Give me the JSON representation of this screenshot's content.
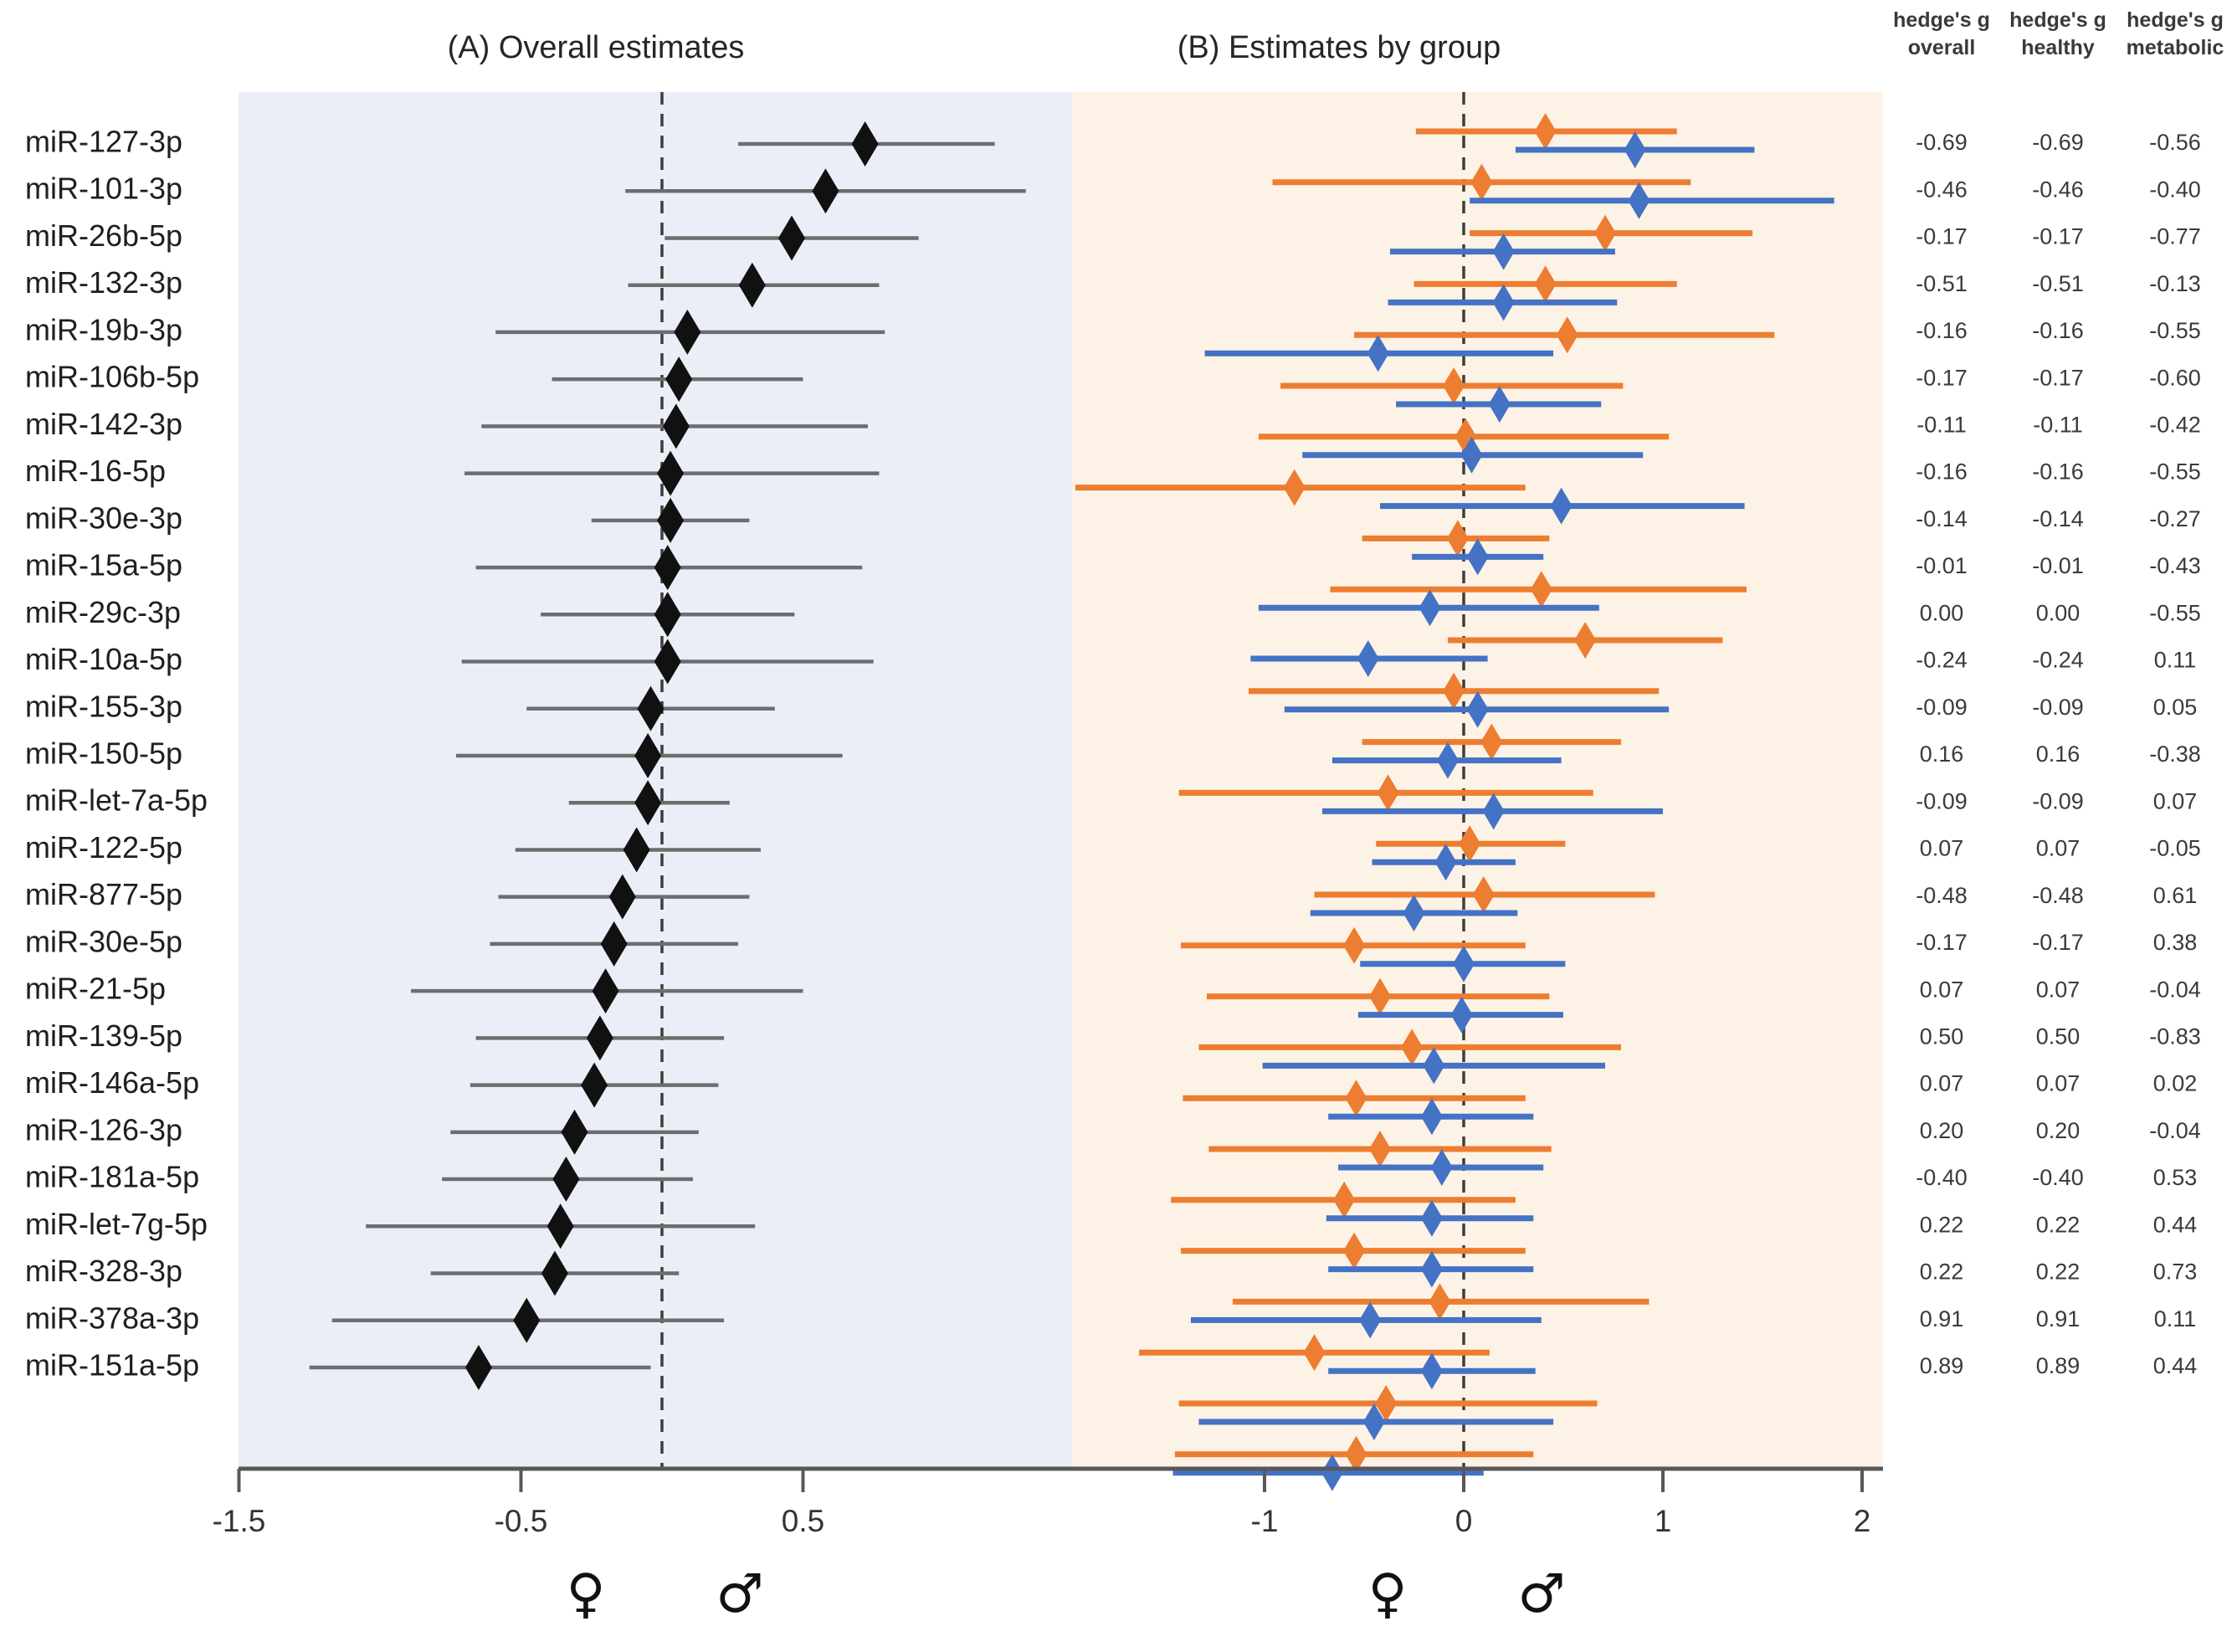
{
  "titles": {
    "panel_a": "(A) Overall estimates",
    "panel_b": "(B) Estimates by group"
  },
  "table_headers": {
    "overall": {
      "line1": "hedge's g",
      "line2": "overall"
    },
    "healthy": {
      "line1": "hedge's g",
      "line2": "healthy"
    },
    "metabolic": {
      "line1": "hedge's g",
      "line2": "metabolic"
    }
  },
  "gender_symbols": {
    "female": "♀",
    "male": "♂"
  },
  "colors": {
    "panel_a_bg": "#eaeef7",
    "panel_b_bg": "#fdf2e6",
    "ci_gray": "#6d6d6d",
    "diamond_black": "#111111",
    "orange": "#ed7d31",
    "blue": "#4472c4",
    "axis": "#58585a",
    "dashed": "#3d3d3d",
    "label_text": "#1f1f1f",
    "tick_text": "#333333",
    "value_text": "#3a3a3a"
  },
  "chart_data": {
    "type": "forest",
    "panels": [
      {
        "id": "A",
        "title": "(A) Overall estimates",
        "xlim": [
          -1.5,
          1.5
        ],
        "ticks": [
          {
            "v": -1.5,
            "label": "-1.5"
          },
          {
            "v": -0.5,
            "label": "-0.5"
          },
          {
            "v": 0.5,
            "label": "0.5"
          }
        ],
        "zero_line": "dashed"
      },
      {
        "id": "B",
        "title": "(B) Estimates by group",
        "xlim": [
          -1.95,
          2.1
        ],
        "ticks": [
          {
            "v": -1,
            "label": "-1"
          },
          {
            "v": 0,
            "label": "0"
          },
          {
            "v": 1,
            "label": "1"
          },
          {
            "v": 2,
            "label": "2"
          }
        ],
        "zero_line": "dashed"
      }
    ],
    "legend_note": "female symbol left of zero, male symbol right of zero under both panels",
    "rows": [
      {
        "label": "miR-127-3p",
        "overall": [
          0.72,
          0.27,
          1.18
        ],
        "orange": [
          0.41,
          -0.24,
          1.07
        ],
        "blue": [
          0.86,
          0.26,
          1.46
        ],
        "g": [
          "-0.69",
          "-0.69",
          "-0.56"
        ]
      },
      {
        "label": "miR-101-3p",
        "overall": [
          0.58,
          -0.13,
          1.29
        ],
        "orange": [
          0.09,
          -0.96,
          1.14
        ],
        "blue": [
          0.88,
          0.03,
          1.86
        ],
        "g": [
          "-0.46",
          "-0.46",
          "-0.40"
        ]
      },
      {
        "label": "miR-26b-5p",
        "overall": [
          0.46,
          0.01,
          0.91
        ],
        "orange": [
          0.71,
          0.03,
          1.45
        ],
        "blue": [
          0.2,
          -0.37,
          0.76
        ],
        "g": [
          "-0.17",
          "-0.17",
          "-0.77"
        ]
      },
      {
        "label": "miR-132-3p",
        "overall": [
          0.32,
          -0.12,
          0.77
        ],
        "orange": [
          0.41,
          -0.25,
          1.07
        ],
        "blue": [
          0.2,
          -0.38,
          0.77
        ],
        "g": [
          "-0.51",
          "-0.51",
          "-0.13"
        ]
      },
      {
        "label": "miR-19b-3p",
        "overall": [
          0.09,
          -0.59,
          0.79
        ],
        "orange": [
          0.52,
          -0.55,
          1.56
        ],
        "blue": [
          -0.43,
          -1.3,
          0.45
        ],
        "g": [
          "-0.16",
          "-0.16",
          "-0.55"
        ]
      },
      {
        "label": "miR-106b-5p",
        "overall": [
          0.06,
          -0.39,
          0.5
        ],
        "orange": [
          -0.05,
          -0.92,
          0.8
        ],
        "blue": [
          0.18,
          -0.34,
          0.69
        ],
        "g": [
          "-0.17",
          "-0.17",
          "-0.60"
        ]
      },
      {
        "label": "miR-142-3p",
        "overall": [
          0.05,
          -0.64,
          0.73
        ],
        "orange": [
          0.01,
          -1.03,
          1.03
        ],
        "blue": [
          0.04,
          -0.81,
          0.9
        ],
        "g": [
          "-0.11",
          "-0.11",
          "-0.42"
        ]
      },
      {
        "label": "miR-16-5p",
        "overall": [
          0.03,
          -0.7,
          0.77
        ],
        "orange": [
          -0.85,
          -1.95,
          0.31
        ],
        "blue": [
          0.49,
          -0.42,
          1.41
        ],
        "g": [
          "-0.16",
          "-0.16",
          "-0.55"
        ]
      },
      {
        "label": "miR-30e-3p",
        "overall": [
          0.03,
          -0.25,
          0.31
        ],
        "orange": [
          -0.03,
          -0.51,
          0.43
        ],
        "blue": [
          0.07,
          -0.26,
          0.4
        ],
        "g": [
          "-0.14",
          "-0.14",
          "-0.27"
        ]
      },
      {
        "label": "miR-15a-5p",
        "overall": [
          0.02,
          -0.66,
          0.71
        ],
        "orange": [
          0.39,
          -0.67,
          1.42
        ],
        "blue": [
          -0.17,
          -1.03,
          0.68
        ],
        "g": [
          "-0.01",
          "-0.01",
          "-0.43"
        ]
      },
      {
        "label": "miR-29c-3p",
        "overall": [
          0.02,
          -0.43,
          0.47
        ],
        "orange": [
          0.61,
          -0.08,
          1.3
        ],
        "blue": [
          -0.48,
          -1.07,
          0.12
        ],
        "g": [
          "0.00",
          "0.00",
          "-0.55"
        ]
      },
      {
        "label": "miR-10a-5p",
        "overall": [
          0.02,
          -0.71,
          0.75
        ],
        "orange": [
          -0.05,
          -1.08,
          0.98
        ],
        "blue": [
          0.07,
          -0.9,
          1.03
        ],
        "g": [
          "-0.24",
          "-0.24",
          "0.11"
        ]
      },
      {
        "label": "miR-155-3p",
        "overall": [
          -0.04,
          -0.48,
          0.4
        ],
        "orange": [
          0.14,
          -0.51,
          0.79
        ],
        "blue": [
          -0.08,
          -0.66,
          0.49
        ],
        "g": [
          "-0.09",
          "-0.09",
          "0.05"
        ]
      },
      {
        "label": "miR-150-5p",
        "overall": [
          -0.05,
          -0.73,
          0.64
        ],
        "orange": [
          -0.38,
          -1.43,
          0.65
        ],
        "blue": [
          0.15,
          -0.71,
          1.0
        ],
        "g": [
          "0.16",
          "0.16",
          "-0.38"
        ]
      },
      {
        "label": "miR-let-7a-5p",
        "overall": [
          -0.05,
          -0.33,
          0.24
        ],
        "orange": [
          0.03,
          -0.44,
          0.51
        ],
        "blue": [
          -0.09,
          -0.46,
          0.26
        ],
        "g": [
          "-0.09",
          "-0.09",
          "0.07"
        ]
      },
      {
        "label": "miR-122-5p",
        "overall": [
          -0.09,
          -0.52,
          0.35
        ],
        "orange": [
          0.1,
          -0.75,
          0.96
        ],
        "blue": [
          -0.25,
          -0.77,
          0.27
        ],
        "g": [
          "0.07",
          "0.07",
          "-0.05"
        ]
      },
      {
        "label": "miR-877-5p",
        "overall": [
          -0.14,
          -0.58,
          0.31
        ],
        "orange": [
          -0.55,
          -1.42,
          0.31
        ],
        "blue": [
          0.0,
          -0.52,
          0.51
        ],
        "g": [
          "-0.48",
          "-0.48",
          "0.61"
        ]
      },
      {
        "label": "miR-30e-5p",
        "overall": [
          -0.17,
          -0.61,
          0.27
        ],
        "orange": [
          -0.42,
          -1.29,
          0.43
        ],
        "blue": [
          -0.01,
          -0.53,
          0.5
        ],
        "g": [
          "-0.17",
          "-0.17",
          "0.38"
        ]
      },
      {
        "label": "miR-21-5p",
        "overall": [
          -0.2,
          -0.89,
          0.5
        ],
        "orange": [
          -0.26,
          -1.33,
          0.79
        ],
        "blue": [
          -0.15,
          -1.01,
          0.71
        ],
        "g": [
          "0.07",
          "0.07",
          "-0.04"
        ]
      },
      {
        "label": "miR-139-5p",
        "overall": [
          -0.22,
          -0.66,
          0.22
        ],
        "orange": [
          -0.54,
          -1.41,
          0.31
        ],
        "blue": [
          -0.16,
          -0.68,
          0.35
        ],
        "g": [
          "0.50",
          "0.50",
          "-0.83"
        ]
      },
      {
        "label": "miR-146a-5p",
        "overall": [
          -0.24,
          -0.68,
          0.2
        ],
        "orange": [
          -0.42,
          -1.28,
          0.44
        ],
        "blue": [
          -0.11,
          -0.63,
          0.4
        ],
        "g": [
          "0.07",
          "0.07",
          "0.02"
        ]
      },
      {
        "label": "miR-126-3p",
        "overall": [
          -0.31,
          -0.75,
          0.13
        ],
        "orange": [
          -0.6,
          -1.47,
          0.26
        ],
        "blue": [
          -0.16,
          -0.69,
          0.35
        ],
        "g": [
          "0.20",
          "0.20",
          "-0.04"
        ]
      },
      {
        "label": "miR-181a-5p",
        "overall": [
          -0.34,
          -0.78,
          0.11
        ],
        "orange": [
          -0.55,
          -1.42,
          0.31
        ],
        "blue": [
          -0.16,
          -0.68,
          0.35
        ],
        "g": [
          "-0.40",
          "-0.40",
          "0.53"
        ]
      },
      {
        "label": "miR-let-7g-5p",
        "overall": [
          -0.36,
          -1.05,
          0.33
        ],
        "orange": [
          -0.12,
          -1.16,
          0.93
        ],
        "blue": [
          -0.47,
          -1.37,
          0.39
        ],
        "g": [
          "0.22",
          "0.22",
          "0.44"
        ]
      },
      {
        "label": "miR-328-3p",
        "overall": [
          -0.38,
          -0.82,
          0.06
        ],
        "orange": [
          -0.75,
          -1.63,
          0.13
        ],
        "blue": [
          -0.16,
          -0.68,
          0.36
        ],
        "g": [
          "0.22",
          "0.22",
          "0.73"
        ]
      },
      {
        "label": "miR-378a-3p",
        "overall": [
          -0.48,
          -1.17,
          0.22
        ],
        "orange": [
          -0.39,
          -1.43,
          0.67
        ],
        "blue": [
          -0.45,
          -1.33,
          0.45
        ],
        "g": [
          "0.91",
          "0.91",
          "0.11"
        ]
      },
      {
        "label": "miR-151a-5p",
        "overall": [
          -0.65,
          -1.25,
          -0.04
        ],
        "orange": [
          -0.54,
          -1.45,
          0.35
        ],
        "blue": [
          -0.66,
          -1.46,
          0.1
        ],
        "g": [
          "0.89",
          "0.89",
          "0.44"
        ]
      }
    ]
  }
}
